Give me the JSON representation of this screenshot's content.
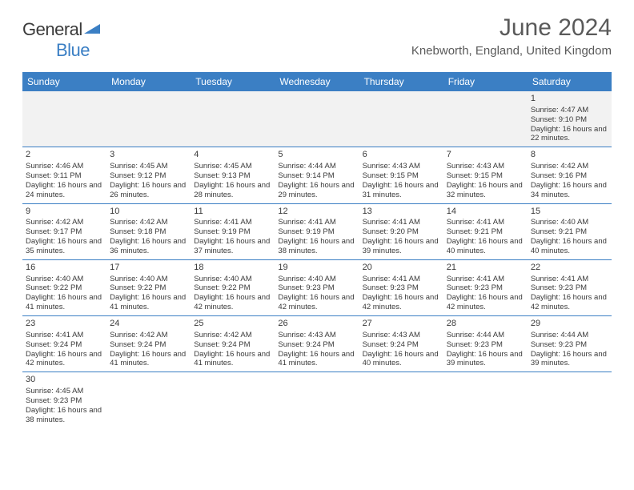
{
  "logo": {
    "text1": "General",
    "text2": "Blue"
  },
  "header": {
    "title": "June 2024",
    "location": "Knebworth, England, United Kingdom"
  },
  "colors": {
    "accent": "#3b7fc4",
    "text": "#3a3a3a",
    "subtle_bg": "#f2f2f2",
    "white": "#ffffff"
  },
  "weekdays": [
    "Sunday",
    "Monday",
    "Tuesday",
    "Wednesday",
    "Thursday",
    "Friday",
    "Saturday"
  ],
  "weeks": [
    [
      null,
      null,
      null,
      null,
      null,
      null,
      {
        "n": "1",
        "sr": "4:47 AM",
        "ss": "9:10 PM",
        "dl": "16 hours and 22 minutes."
      }
    ],
    [
      {
        "n": "2",
        "sr": "4:46 AM",
        "ss": "9:11 PM",
        "dl": "16 hours and 24 minutes."
      },
      {
        "n": "3",
        "sr": "4:45 AM",
        "ss": "9:12 PM",
        "dl": "16 hours and 26 minutes."
      },
      {
        "n": "4",
        "sr": "4:45 AM",
        "ss": "9:13 PM",
        "dl": "16 hours and 28 minutes."
      },
      {
        "n": "5",
        "sr": "4:44 AM",
        "ss": "9:14 PM",
        "dl": "16 hours and 29 minutes."
      },
      {
        "n": "6",
        "sr": "4:43 AM",
        "ss": "9:15 PM",
        "dl": "16 hours and 31 minutes."
      },
      {
        "n": "7",
        "sr": "4:43 AM",
        "ss": "9:15 PM",
        "dl": "16 hours and 32 minutes."
      },
      {
        "n": "8",
        "sr": "4:42 AM",
        "ss": "9:16 PM",
        "dl": "16 hours and 34 minutes."
      }
    ],
    [
      {
        "n": "9",
        "sr": "4:42 AM",
        "ss": "9:17 PM",
        "dl": "16 hours and 35 minutes."
      },
      {
        "n": "10",
        "sr": "4:42 AM",
        "ss": "9:18 PM",
        "dl": "16 hours and 36 minutes."
      },
      {
        "n": "11",
        "sr": "4:41 AM",
        "ss": "9:19 PM",
        "dl": "16 hours and 37 minutes."
      },
      {
        "n": "12",
        "sr": "4:41 AM",
        "ss": "9:19 PM",
        "dl": "16 hours and 38 minutes."
      },
      {
        "n": "13",
        "sr": "4:41 AM",
        "ss": "9:20 PM",
        "dl": "16 hours and 39 minutes."
      },
      {
        "n": "14",
        "sr": "4:41 AM",
        "ss": "9:21 PM",
        "dl": "16 hours and 40 minutes."
      },
      {
        "n": "15",
        "sr": "4:40 AM",
        "ss": "9:21 PM",
        "dl": "16 hours and 40 minutes."
      }
    ],
    [
      {
        "n": "16",
        "sr": "4:40 AM",
        "ss": "9:22 PM",
        "dl": "16 hours and 41 minutes."
      },
      {
        "n": "17",
        "sr": "4:40 AM",
        "ss": "9:22 PM",
        "dl": "16 hours and 41 minutes."
      },
      {
        "n": "18",
        "sr": "4:40 AM",
        "ss": "9:22 PM",
        "dl": "16 hours and 42 minutes."
      },
      {
        "n": "19",
        "sr": "4:40 AM",
        "ss": "9:23 PM",
        "dl": "16 hours and 42 minutes."
      },
      {
        "n": "20",
        "sr": "4:41 AM",
        "ss": "9:23 PM",
        "dl": "16 hours and 42 minutes."
      },
      {
        "n": "21",
        "sr": "4:41 AM",
        "ss": "9:23 PM",
        "dl": "16 hours and 42 minutes."
      },
      {
        "n": "22",
        "sr": "4:41 AM",
        "ss": "9:23 PM",
        "dl": "16 hours and 42 minutes."
      }
    ],
    [
      {
        "n": "23",
        "sr": "4:41 AM",
        "ss": "9:24 PM",
        "dl": "16 hours and 42 minutes."
      },
      {
        "n": "24",
        "sr": "4:42 AM",
        "ss": "9:24 PM",
        "dl": "16 hours and 41 minutes."
      },
      {
        "n": "25",
        "sr": "4:42 AM",
        "ss": "9:24 PM",
        "dl": "16 hours and 41 minutes."
      },
      {
        "n": "26",
        "sr": "4:43 AM",
        "ss": "9:24 PM",
        "dl": "16 hours and 41 minutes."
      },
      {
        "n": "27",
        "sr": "4:43 AM",
        "ss": "9:24 PM",
        "dl": "16 hours and 40 minutes."
      },
      {
        "n": "28",
        "sr": "4:44 AM",
        "ss": "9:23 PM",
        "dl": "16 hours and 39 minutes."
      },
      {
        "n": "29",
        "sr": "4:44 AM",
        "ss": "9:23 PM",
        "dl": "16 hours and 39 minutes."
      }
    ],
    [
      {
        "n": "30",
        "sr": "4:45 AM",
        "ss": "9:23 PM",
        "dl": "16 hours and 38 minutes."
      },
      null,
      null,
      null,
      null,
      null,
      null
    ]
  ],
  "labels": {
    "sunrise": "Sunrise:",
    "sunset": "Sunset:",
    "daylight": "Daylight:"
  }
}
